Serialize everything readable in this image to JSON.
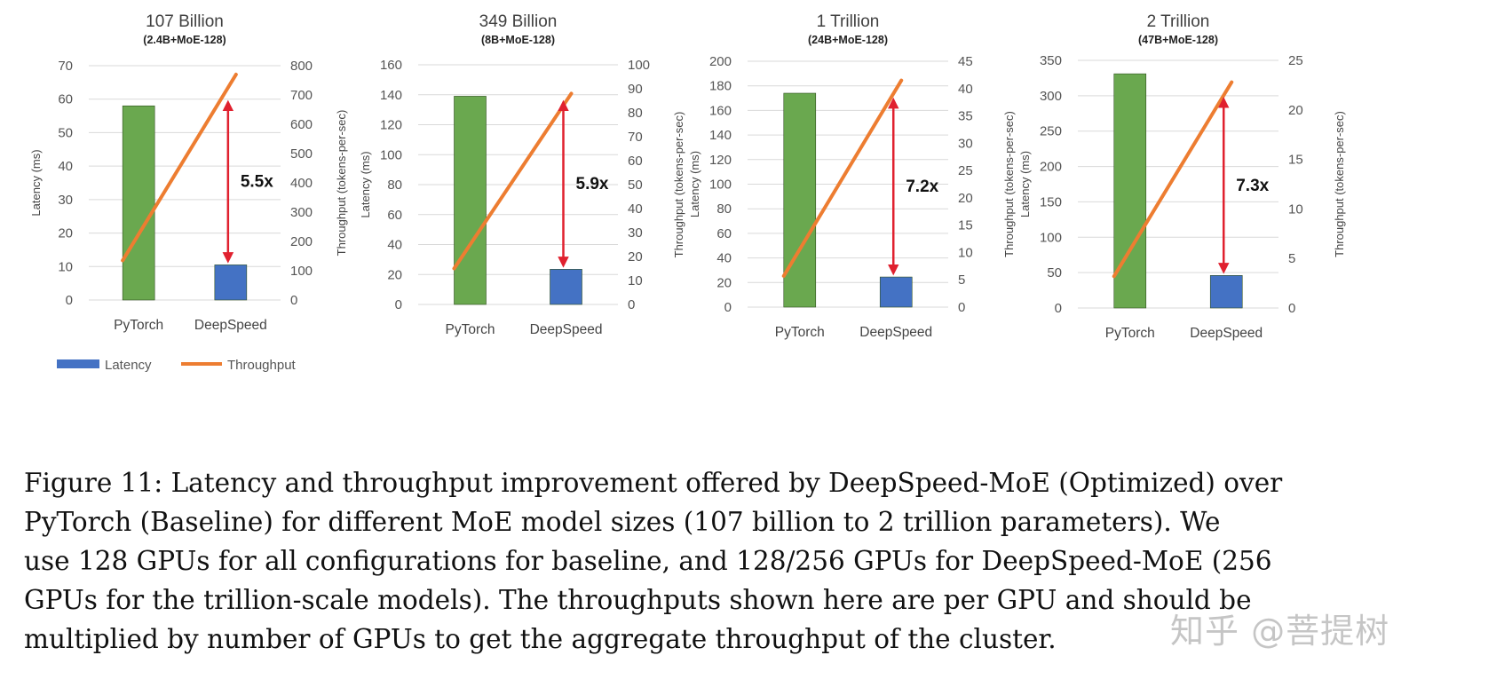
{
  "chart_data": [
    {
      "type": "bar+line",
      "title": "107 Billion",
      "subtitle": "(2.4B+MoE-128)",
      "categories": [
        "PyTorch",
        "DeepSpeed"
      ],
      "series": [
        {
          "name": "Latency",
          "type": "bar",
          "axis": "left",
          "values": [
            58,
            10.5
          ],
          "color": "#6aa84f"
        },
        {
          "name": "Throughput",
          "type": "line",
          "axis": "right",
          "values": [
            135,
            770
          ],
          "color": "#ed7d31"
        }
      ],
      "ylabel": "Latency (ms)",
      "y2label": "Throughput (tokens-per-sec)",
      "ylim": [
        0,
        70
      ],
      "yticks": [
        0,
        10,
        20,
        30,
        40,
        50,
        60,
        70
      ],
      "y2lim": [
        0,
        800
      ],
      "y2ticks": [
        0,
        100,
        200,
        300,
        400,
        500,
        600,
        700,
        800
      ],
      "annotation": "5.5x",
      "grid": true
    },
    {
      "type": "bar+line",
      "title": "349 Billion",
      "subtitle": "(8B+MoE-128)",
      "categories": [
        "PyTorch",
        "DeepSpeed"
      ],
      "series": [
        {
          "name": "Latency",
          "type": "bar",
          "axis": "left",
          "values": [
            139,
            23.5
          ],
          "color": "#6aa84f"
        },
        {
          "name": "Throughput",
          "type": "line",
          "axis": "right",
          "values": [
            15,
            88
          ],
          "color": "#ed7d31"
        }
      ],
      "ylabel": "Latency (ms)",
      "y2label": "Throughput (tokens-per-sec)",
      "ylim": [
        0,
        160
      ],
      "yticks": [
        0,
        20,
        40,
        60,
        80,
        100,
        120,
        140,
        160
      ],
      "y2lim": [
        0,
        100
      ],
      "y2ticks": [
        0,
        10,
        20,
        30,
        40,
        50,
        60,
        70,
        80,
        90,
        100
      ],
      "annotation": "5.9x",
      "grid": true
    },
    {
      "type": "bar+line",
      "title": "1 Trillion",
      "subtitle": "(24B+MoE-128)",
      "categories": [
        "PyTorch",
        "DeepSpeed"
      ],
      "series": [
        {
          "name": "Latency",
          "type": "bar",
          "axis": "left",
          "values": [
            174,
            24.5
          ],
          "color": "#6aa84f"
        },
        {
          "name": "Throughput",
          "type": "line",
          "axis": "right",
          "values": [
            5.7,
            41.5
          ],
          "color": "#ed7d31"
        }
      ],
      "ylabel": "Latency (ms)",
      "y2label": "Throughput (tokens-per-sec)",
      "ylim": [
        0,
        200
      ],
      "yticks": [
        0,
        20,
        40,
        60,
        80,
        100,
        120,
        140,
        160,
        180,
        200
      ],
      "y2lim": [
        0,
        45
      ],
      "y2ticks": [
        0,
        5,
        10,
        15,
        20,
        25,
        30,
        35,
        40,
        45
      ],
      "annotation": "7.2x",
      "grid": true
    },
    {
      "type": "bar+line",
      "title": "2 Trillion",
      "subtitle": "(47B+MoE-128)",
      "categories": [
        "PyTorch",
        "DeepSpeed"
      ],
      "series": [
        {
          "name": "Latency",
          "type": "bar",
          "axis": "left",
          "values": [
            331,
            46
          ],
          "color": "#6aa84f"
        },
        {
          "name": "Throughput",
          "type": "line",
          "axis": "right",
          "values": [
            3.2,
            22.8
          ],
          "color": "#ed7d31"
        }
      ],
      "ylabel": "Latency (ms)",
      "y2label": "Throughput (tokens-per-sec)",
      "ylim": [
        0,
        350
      ],
      "yticks": [
        0,
        50,
        100,
        150,
        200,
        250,
        300,
        350
      ],
      "y2lim": [
        0,
        25
      ],
      "y2ticks": [
        0,
        5,
        10,
        15,
        20,
        25
      ],
      "annotation": "7.3x",
      "grid": true
    }
  ],
  "legend": {
    "items": [
      {
        "label": "Latency",
        "color": "#4472c4"
      },
      {
        "label": "Throughput",
        "color": "#ed7d31"
      }
    ],
    "placement": "bottom-left"
  },
  "colors": {
    "pytorch_bar": "#6aa84f",
    "deepspeed_bar": "#4472c4",
    "throughput_line": "#ed7d31",
    "arrow": "#e0212f",
    "grid": "#d9d9d9"
  },
  "caption": {
    "lines": [
      "Figure 11: Latency and throughput improvement offered by DeepSpeed-MoE (Optimized) over",
      "PyTorch (Baseline) for different MoE model sizes (107 billion to 2 trillion parameters).  We",
      "use 128 GPUs for all configurations for baseline, and 128/256 GPUs for DeepSpeed-MoE (256",
      "GPUs for the trillion-scale models). The throughputs shown here are per GPU and should be",
      "multiplied by number of GPUs to get the aggregate throughput of the cluster."
    ]
  },
  "watermark": "知乎 @菩提树"
}
